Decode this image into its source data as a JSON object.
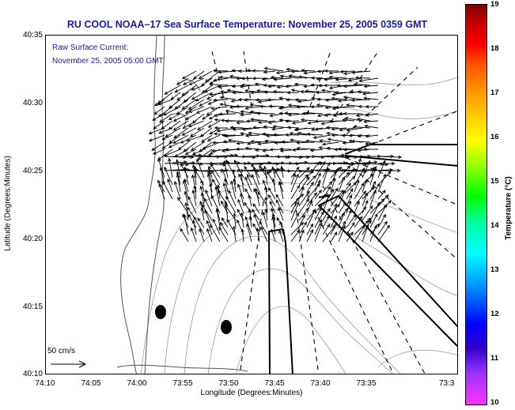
{
  "title": "RU COOL  NOAA–17  Sea Surface Temperature:  November 25, 2005 0359 GMT",
  "annotation": {
    "line1": "Raw Surface Current:",
    "line2": "November 25, 2005 05:00 GMT"
  },
  "scale_label": "50 cm/s",
  "axes": {
    "xlabel": "Longitude (Degrees:Minutes)",
    "ylabel": "Latitude (Degrees:Minutes)",
    "xticks": [
      "74:10",
      "74:05",
      "74:00",
      "73:55",
      "73:50",
      "73:45",
      "73:40",
      "73:35",
      "73:3"
    ],
    "yticks": [
      "40:35",
      "40:30",
      "40:25",
      "40:20",
      "40:15",
      "40:10"
    ]
  },
  "colorbar": {
    "label": "Temperature (°C)",
    "ticks": [
      "19",
      "18",
      "17",
      "16",
      "15",
      "14",
      "13",
      "12",
      "11",
      "10"
    ],
    "min": 10,
    "max": 19
  },
  "colors": {
    "title": "#1a1aa0",
    "arrows": "#000000",
    "coast": "#555555",
    "bathymetry": "#9a9a9a"
  }
}
